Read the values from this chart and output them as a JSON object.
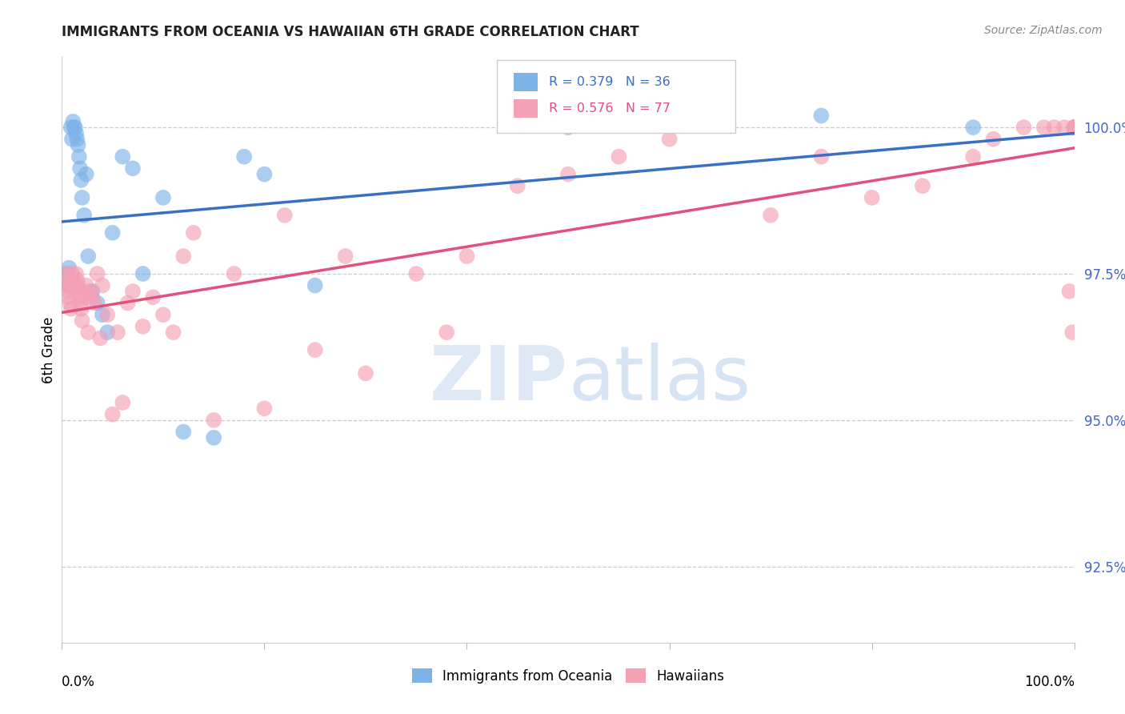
{
  "title": "IMMIGRANTS FROM OCEANIA VS HAWAIIAN 6TH GRADE CORRELATION CHART",
  "source": "Source: ZipAtlas.com",
  "ylabel": "6th Grade",
  "y_tick_labels": [
    "92.5%",
    "95.0%",
    "97.5%",
    "100.0%"
  ],
  "y_tick_values": [
    92.5,
    95.0,
    97.5,
    100.0
  ],
  "ylim": [
    91.2,
    101.2
  ],
  "xlim": [
    0.0,
    100.0
  ],
  "R_blue": 0.379,
  "N_blue": 36,
  "R_pink": 0.576,
  "N_pink": 77,
  "blue_color": "#7EB3E8",
  "pink_color": "#F4A0B5",
  "blue_line_color": "#3A6FC4",
  "pink_line_color": "#E05080",
  "legend_label_blue": "Immigrants from Oceania",
  "legend_label_pink": "Hawaiians",
  "blue_x": [
    0.5,
    0.6,
    0.7,
    0.8,
    0.9,
    1.0,
    1.1,
    1.2,
    1.3,
    1.4,
    1.5,
    1.6,
    1.7,
    1.8,
    1.9,
    2.0,
    2.2,
    2.4,
    2.6,
    3.0,
    3.5,
    4.0,
    4.5,
    5.0,
    6.0,
    7.0,
    8.0,
    10.0,
    12.0,
    15.0,
    18.0,
    20.0,
    25.0,
    50.0,
    75.0,
    90.0
  ],
  "blue_y": [
    97.5,
    97.3,
    97.6,
    97.4,
    100.0,
    99.8,
    100.1,
    100.0,
    100.0,
    99.9,
    99.8,
    99.7,
    99.5,
    99.3,
    99.1,
    98.8,
    98.5,
    99.2,
    97.8,
    97.2,
    97.0,
    96.8,
    96.5,
    98.2,
    99.5,
    99.3,
    97.5,
    98.8,
    94.8,
    94.7,
    99.5,
    99.2,
    97.3,
    100.0,
    100.2,
    100.0
  ],
  "pink_x": [
    0.2,
    0.3,
    0.4,
    0.5,
    0.6,
    0.7,
    0.8,
    0.9,
    1.0,
    1.1,
    1.2,
    1.3,
    1.4,
    1.5,
    1.6,
    1.7,
    1.8,
    1.9,
    2.0,
    2.1,
    2.2,
    2.4,
    2.6,
    2.8,
    3.0,
    3.2,
    3.5,
    3.8,
    4.0,
    4.5,
    5.0,
    5.5,
    6.0,
    6.5,
    7.0,
    8.0,
    9.0,
    10.0,
    11.0,
    12.0,
    13.0,
    15.0,
    17.0,
    20.0,
    22.0,
    25.0,
    28.0,
    30.0,
    35.0,
    38.0,
    40.0,
    45.0,
    50.0,
    55.0,
    60.0,
    70.0,
    75.0,
    80.0,
    85.0,
    90.0,
    92.0,
    95.0,
    97.0,
    98.0,
    99.0,
    99.5,
    99.8,
    100.0,
    100.0,
    100.0,
    100.0,
    100.0,
    100.0,
    100.0,
    100.0,
    100.0,
    100.0
  ],
  "pink_y": [
    97.4,
    97.3,
    97.5,
    97.3,
    97.2,
    97.1,
    97.0,
    96.9,
    97.5,
    97.4,
    97.3,
    97.2,
    97.5,
    97.4,
    97.3,
    97.1,
    97.0,
    96.9,
    96.7,
    97.2,
    97.1,
    97.3,
    96.5,
    97.2,
    97.1,
    97.0,
    97.5,
    96.4,
    97.3,
    96.8,
    95.1,
    96.5,
    95.3,
    97.0,
    97.2,
    96.6,
    97.1,
    96.8,
    96.5,
    97.8,
    98.2,
    95.0,
    97.5,
    95.2,
    98.5,
    96.2,
    97.8,
    95.8,
    97.5,
    96.5,
    97.8,
    99.0,
    99.2,
    99.5,
    99.8,
    98.5,
    99.5,
    98.8,
    99.0,
    99.5,
    99.8,
    100.0,
    100.0,
    100.0,
    100.0,
    97.2,
    96.5,
    100.0,
    100.0,
    100.0,
    100.0,
    100.0,
    100.0,
    100.0,
    100.0,
    100.0,
    100.0
  ]
}
